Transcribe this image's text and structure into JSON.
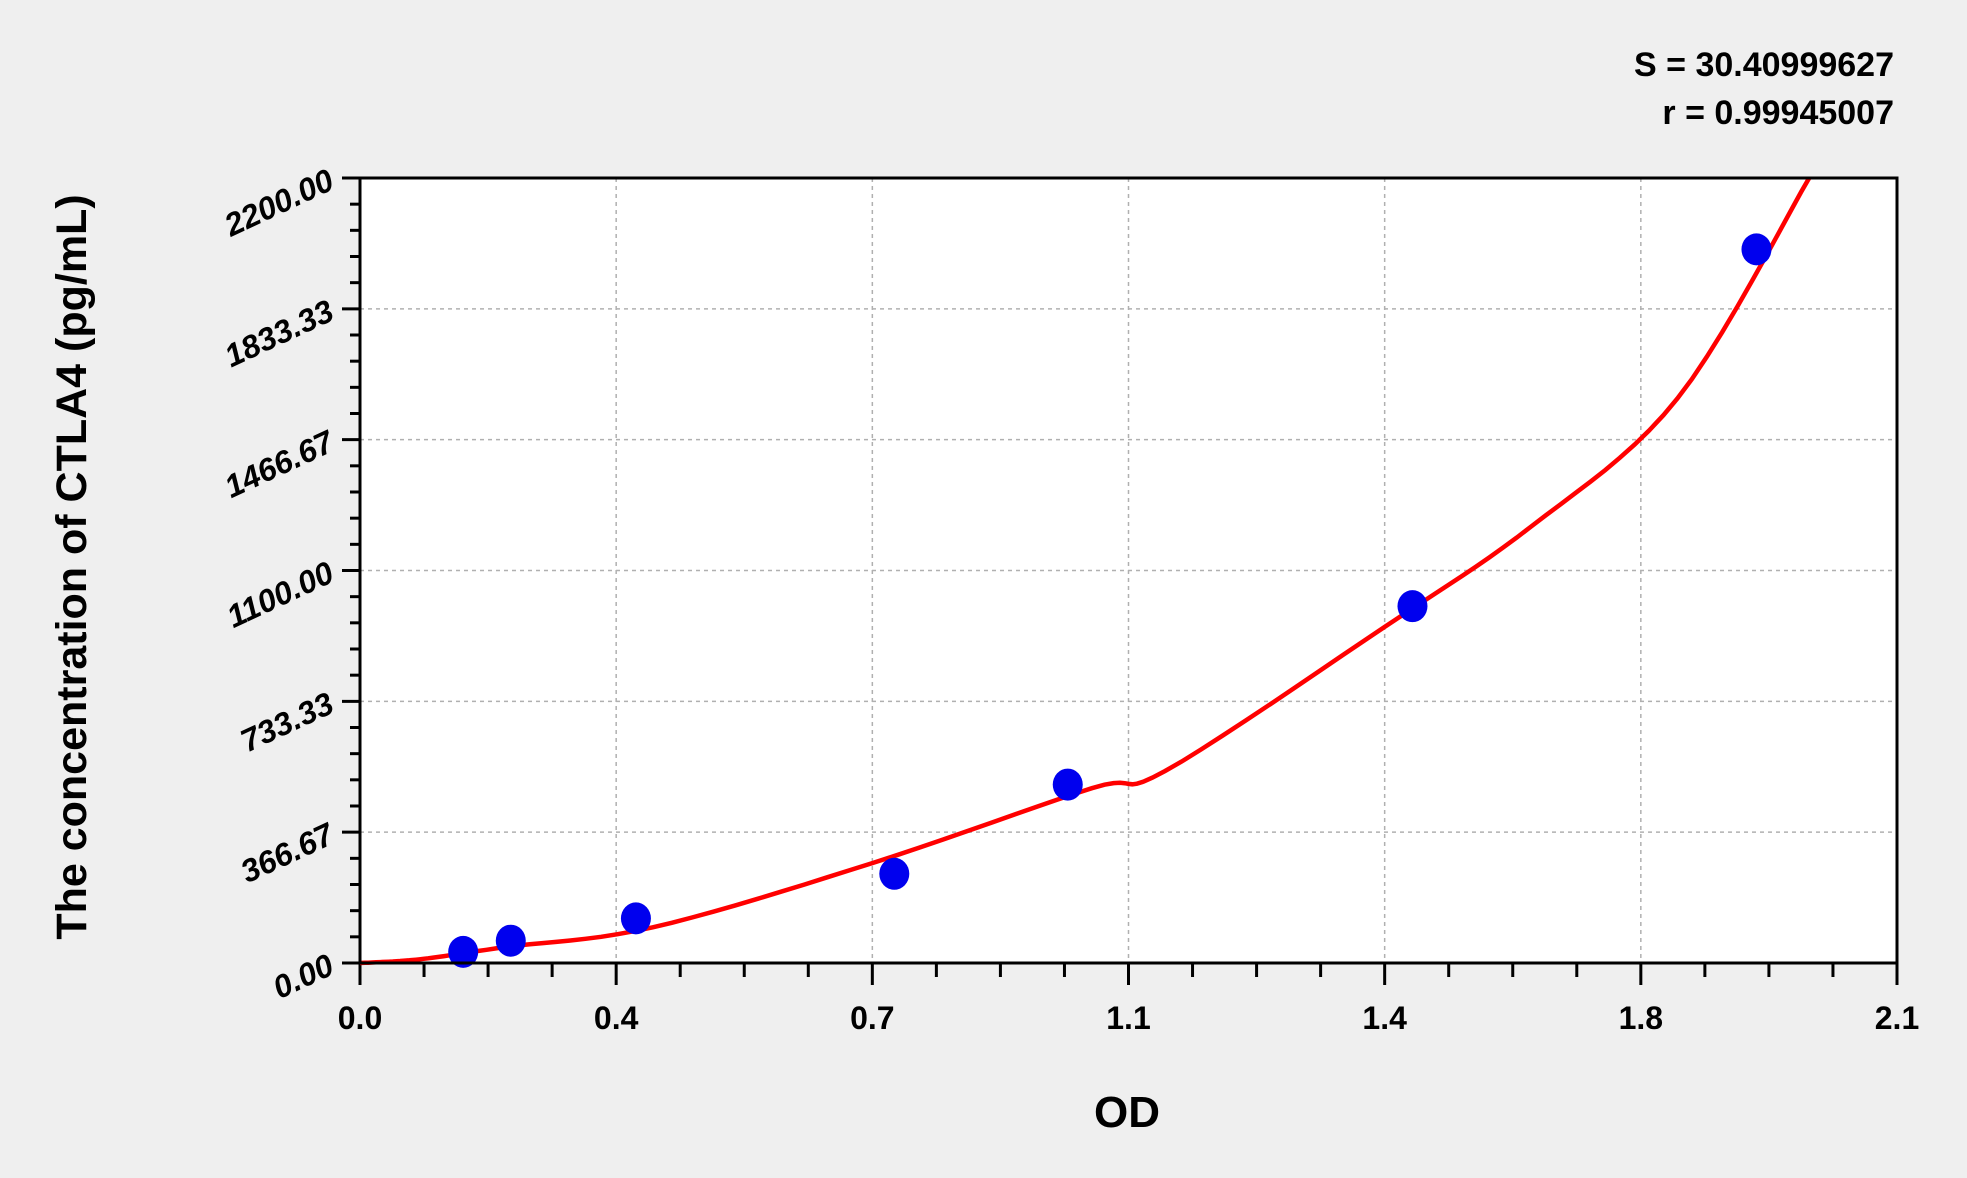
{
  "chart_data": {
    "type": "scatter",
    "xlabel": "OD",
    "ylabel": "The concentration of CTLA4 (pg/mL)",
    "xlim": [
      0,
      2.1
    ],
    "ylim": [
      0,
      2200
    ],
    "x_ticks": [
      "0.0",
      "0.4",
      "0.7",
      "1.1",
      "1.4",
      "1.8",
      "2.1"
    ],
    "y_ticks": [
      "0.00",
      "366.67",
      "733.33",
      "1100.00",
      "1466.67",
      "1833.33",
      "2200.00"
    ],
    "grid": true,
    "stats": {
      "s": "S = 30.40999627",
      "r": "r = 0.99945007"
    },
    "points": {
      "x": [
        0.141,
        0.206,
        0.377,
        0.73,
        0.967,
        1.438,
        1.908
      ],
      "y": [
        31.25,
        62.5,
        125,
        250,
        500,
        1000,
        2000
      ]
    },
    "fit_curve": {
      "x": [
        0,
        0.05,
        0.1,
        0.2,
        0.4,
        0.7,
        1.0,
        1.1,
        1.4,
        1.6,
        1.8,
        1.98
      ],
      "y": [
        0,
        5,
        15,
        45,
        100,
        280,
        490,
        538,
        942,
        1223,
        1582,
        2200
      ]
    },
    "colors": {
      "points": "#0000ee",
      "curve": "#ff0000",
      "background": "#efefef",
      "plot": "#ffffff"
    }
  }
}
